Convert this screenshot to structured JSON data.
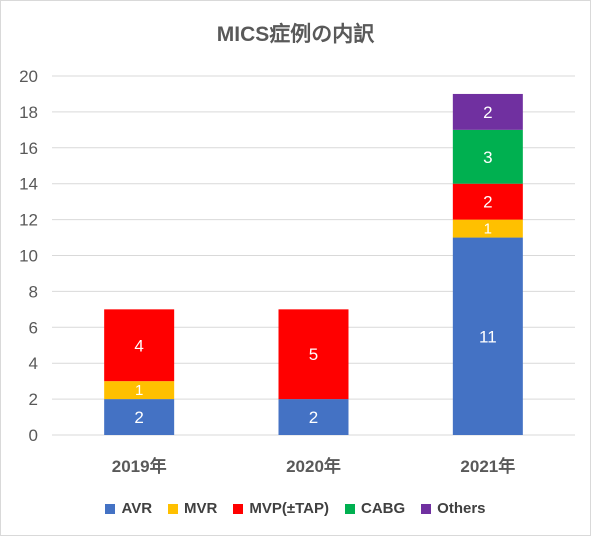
{
  "chart_data": {
    "type": "bar",
    "stacked": true,
    "title": "MICS症例の内訳",
    "categories": [
      "2019年",
      "2020年",
      "2021年"
    ],
    "series": [
      {
        "name": "AVR",
        "color": "#4472c4",
        "values": [
          2,
          2,
          11
        ]
      },
      {
        "name": "MVR",
        "color": "#ffc000",
        "values": [
          1,
          0,
          1
        ]
      },
      {
        "name": "MVP(±TAP)",
        "color": "#ff0000",
        "values": [
          4,
          5,
          2
        ]
      },
      {
        "name": "CABG",
        "color": "#00b050",
        "values": [
          0,
          0,
          3
        ]
      },
      {
        "name": "Others",
        "color": "#7030a0",
        "values": [
          0,
          0,
          2
        ]
      }
    ],
    "ylim": [
      0,
      20
    ],
    "yticks": [
      0,
      2,
      4,
      6,
      8,
      10,
      12,
      14,
      16,
      18,
      20
    ],
    "xlabel": "",
    "ylabel": "",
    "grid": true,
    "legend_position": "bottom",
    "colors": {
      "grid": "#d9d9d9",
      "axis_text": "#595959",
      "label_text": "#ffffff"
    }
  }
}
